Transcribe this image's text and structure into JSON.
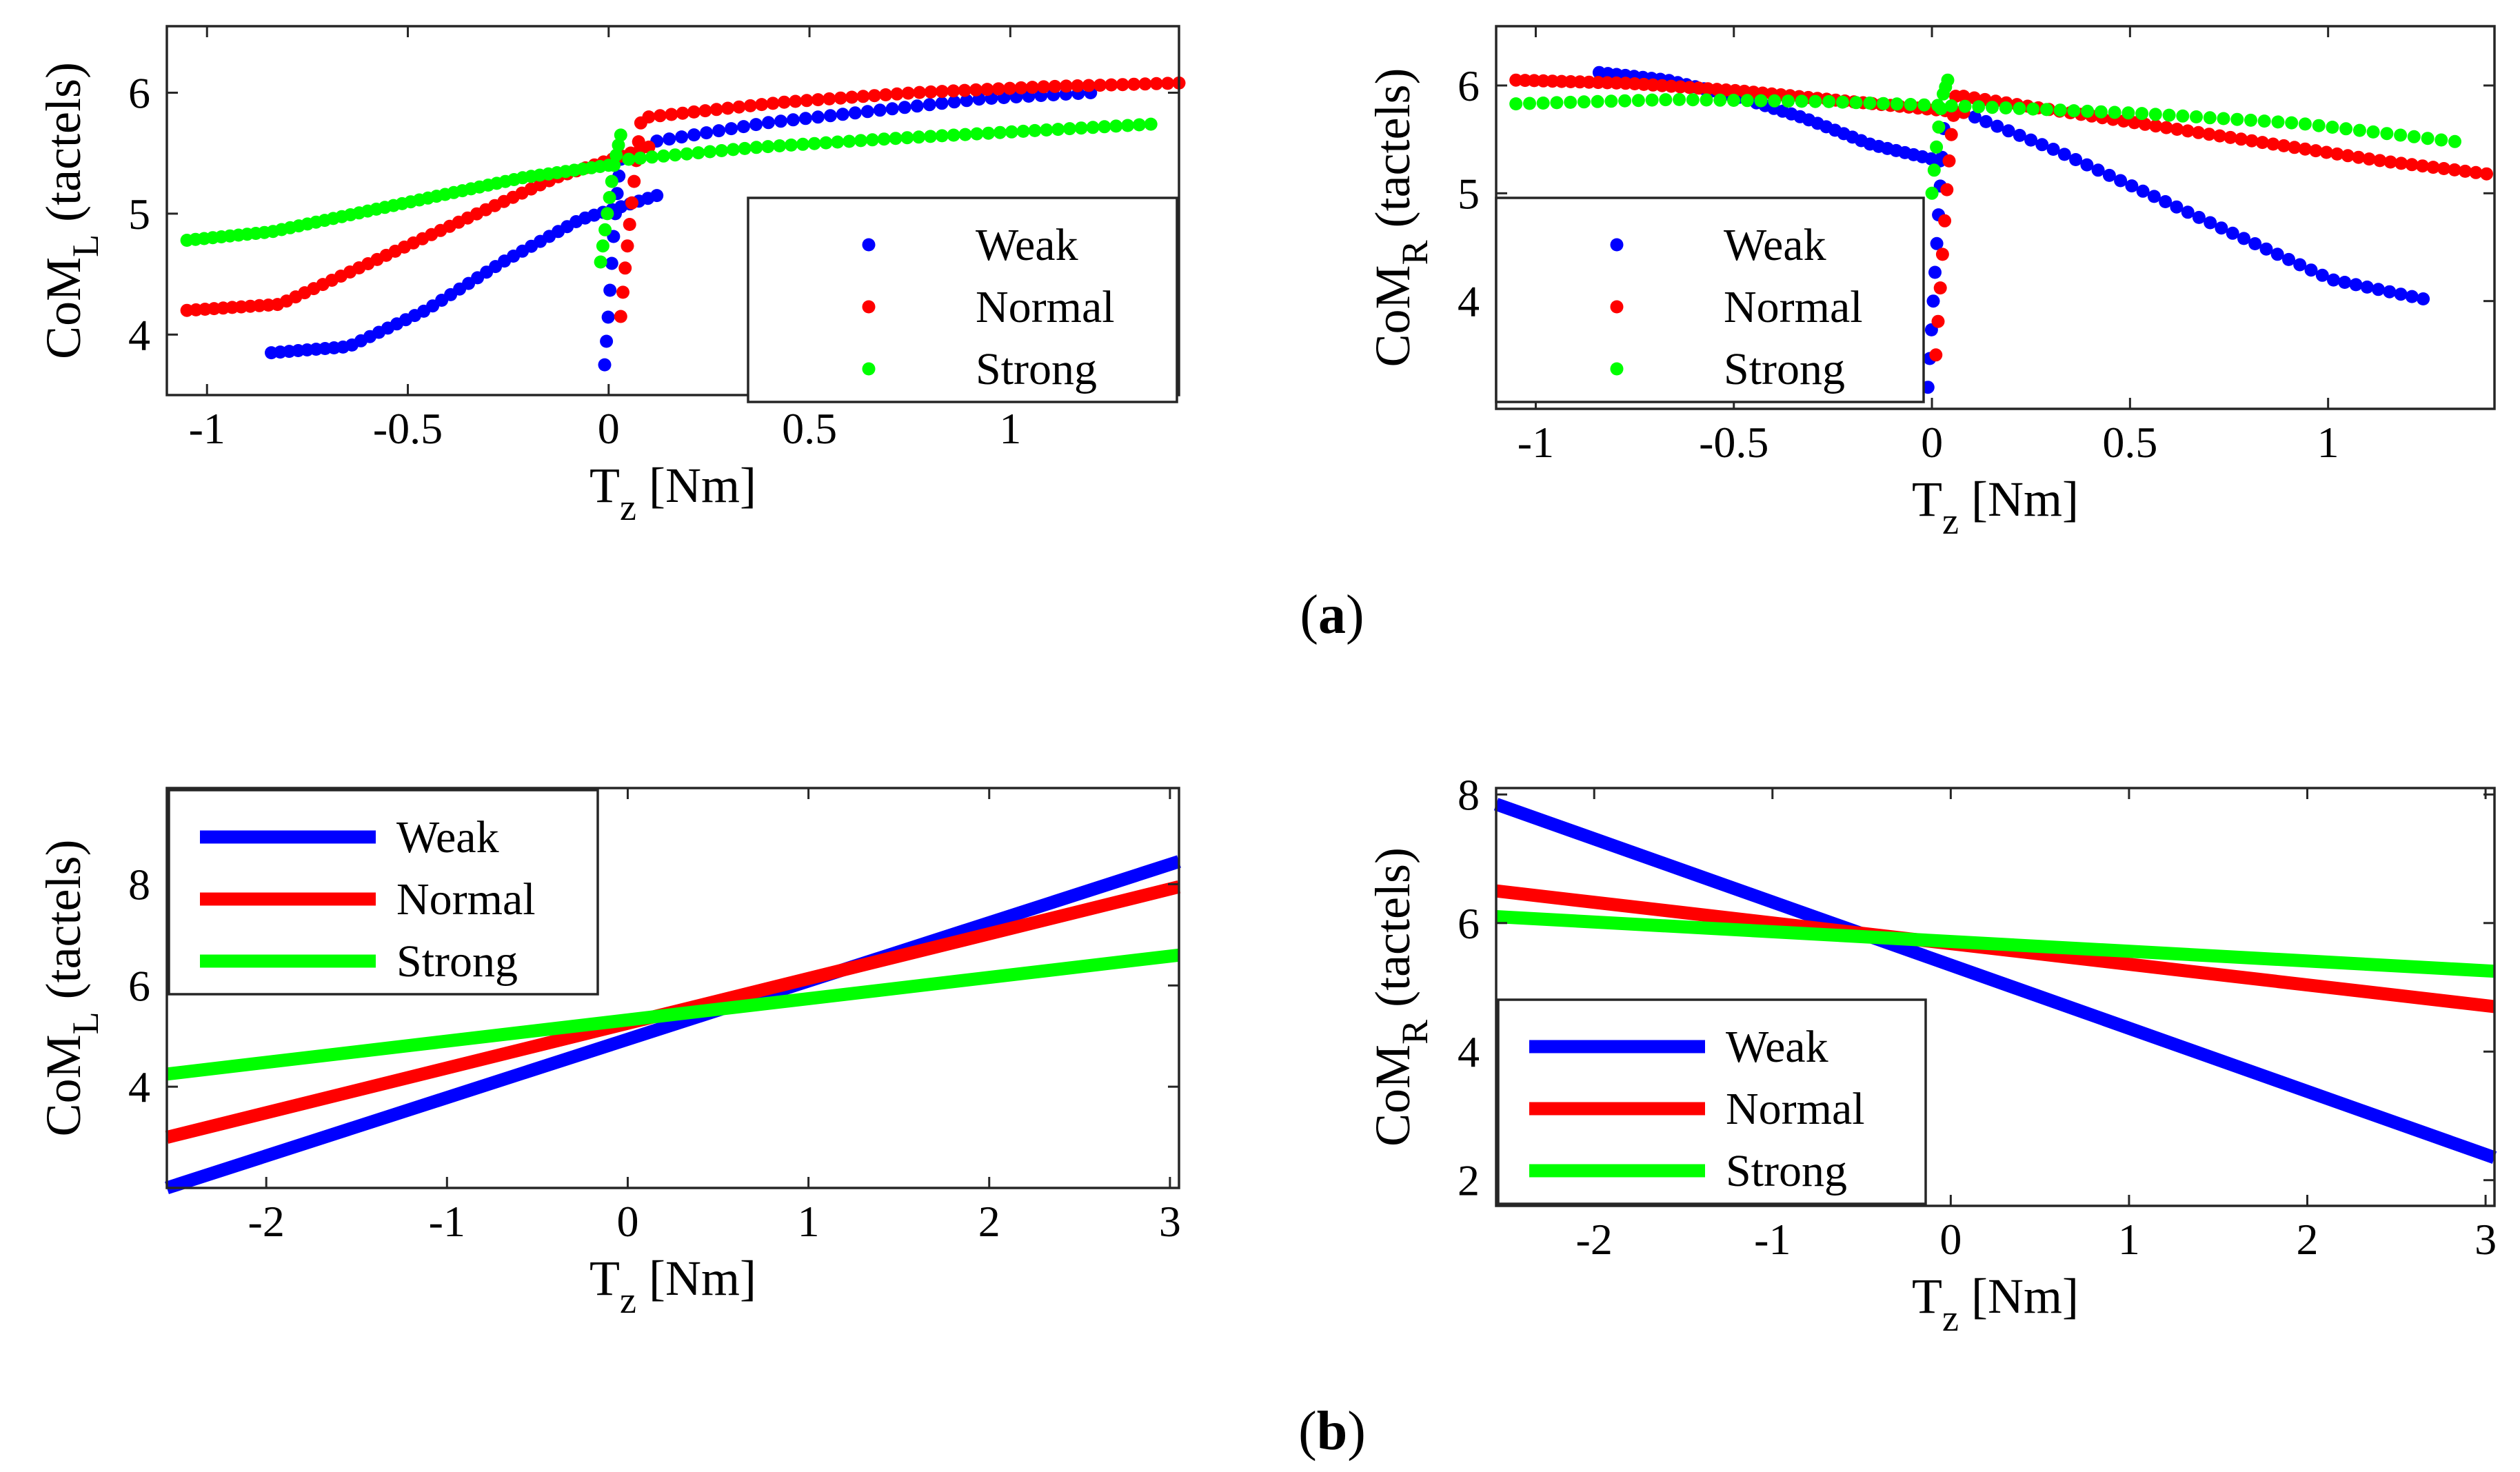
{
  "figure": {
    "panel_labels": {
      "a": {
        "open": "(",
        "letter": "a",
        "close": ")"
      },
      "b": {
        "open": "(",
        "letter": "b",
        "close": ")"
      }
    },
    "colors": {
      "Weak": "#0000ff",
      "Normal": "#ff0000",
      "Strong": "#00ff00"
    }
  },
  "chart_data": [
    {
      "id": "a-left",
      "type": "scatter",
      "title": "",
      "xlabel": {
        "main": "T",
        "sub": "z",
        "rest": " [Nm]"
      },
      "ylabel": {
        "main": "CoM",
        "sub": "L",
        "rest": " (tactels)"
      },
      "xlim": [
        -1.1,
        1.42
      ],
      "ylim": [
        3.5,
        6.55
      ],
      "xticks": [
        -1,
        -0.5,
        0,
        0.5,
        1
      ],
      "xtick_labels": [
        "-1",
        "-0.5",
        "0",
        "0.5",
        "1"
      ],
      "yticks": [
        4,
        5,
        6
      ],
      "ytick_labels": [
        "4",
        "5",
        "6"
      ],
      "legend": {
        "position": "bottom-right",
        "entries": [
          "Weak",
          "Normal",
          "Strong"
        ]
      },
      "series": [
        {
          "name": "Weak",
          "branches": [
            {
              "x0": -0.84,
              "x1": 0.12,
              "y": [
                3.85,
                3.9,
                4.2,
                4.6,
                4.95,
                5.15
              ],
              "n": 44
            },
            {
              "x0": 0.12,
              "x1": 1.2,
              "y": [
                5.6,
                5.75,
                5.85,
                5.95,
                6.0
              ],
              "n": 36
            },
            {
              "x0": -0.01,
              "x1": 0.03,
              "y": [
                3.75,
                4.1,
                4.5,
                4.9,
                5.2,
                5.45
              ],
              "n": 10
            }
          ]
        },
        {
          "name": "Normal",
          "branches": [
            {
              "x0": -1.05,
              "x1": 0.1,
              "y": [
                4.2,
                4.25,
                4.6,
                4.95,
                5.3,
                5.55
              ],
              "n": 52
            },
            {
              "x0": 0.1,
              "x1": 1.42,
              "y": [
                5.8,
                5.92,
                6.0,
                6.05,
                6.08
              ],
              "n": 48
            },
            {
              "x0": 0.03,
              "x1": 0.08,
              "y": [
                4.15,
                4.6,
                5.0,
                5.4,
                5.75
              ],
              "n": 10
            }
          ]
        },
        {
          "name": "Strong",
          "branches": [
            {
              "x0": -1.05,
              "x1": 0.0,
              "y": [
                4.78,
                4.85,
                5.0,
                5.15,
                5.3,
                5.4
              ],
              "n": 50
            },
            {
              "x0": 0.05,
              "x1": 1.35,
              "y": [
                5.45,
                5.55,
                5.62,
                5.68,
                5.74
              ],
              "n": 46
            },
            {
              "x0": -0.02,
              "x1": 0.03,
              "y": [
                4.6,
                5.0,
                5.4,
                5.65
              ],
              "n": 10
            }
          ]
        }
      ]
    },
    {
      "id": "a-right",
      "type": "scatter",
      "title": "",
      "xlabel": {
        "main": "T",
        "sub": "z",
        "rest": " [Nm]"
      },
      "ylabel": {
        "main": "CoM",
        "sub": "R",
        "rest": " (tactels)"
      },
      "xlim": [
        -1.1,
        1.42
      ],
      "ylim": [
        3.0,
        6.55
      ],
      "xticks": [
        -1,
        -0.5,
        0,
        0.5,
        1
      ],
      "xtick_labels": [
        "-1",
        "-0.5",
        "0",
        "0.5",
        "1"
      ],
      "yticks": [
        4,
        5,
        6
      ],
      "ytick_labels": [
        "4",
        "5",
        "6"
      ],
      "legend": {
        "position": "bottom-left",
        "entries": [
          "Weak",
          "Normal",
          "Strong"
        ]
      },
      "series": [
        {
          "name": "Weak",
          "branches": [
            {
              "x0": -0.84,
              "x1": 0.02,
              "y": [
                6.12,
                6.05,
                5.9,
                5.7,
                5.45,
                5.3
              ],
              "n": 40
            },
            {
              "x0": 0.08,
              "x1": 1.24,
              "y": [
                5.75,
                5.4,
                5.0,
                4.6,
                4.2,
                4.02
              ],
              "n": 42
            },
            {
              "x0": -0.01,
              "x1": 0.03,
              "y": [
                3.2,
                3.8,
                4.4,
                5.0,
                5.6
              ],
              "n": 10
            }
          ]
        },
        {
          "name": "Normal",
          "branches": [
            {
              "x0": -1.05,
              "x1": 0.08,
              "y": [
                6.05,
                6.02,
                5.95,
                5.85,
                5.75
              ],
              "n": 50
            },
            {
              "x0": 0.08,
              "x1": 1.4,
              "y": [
                5.9,
                5.75,
                5.6,
                5.45,
                5.3,
                5.18
              ],
              "n": 50
            },
            {
              "x0": 0.01,
              "x1": 0.06,
              "y": [
                3.5,
                4.2,
                4.9,
                5.5,
                5.9
              ],
              "n": 10
            }
          ]
        },
        {
          "name": "Strong",
          "branches": [
            {
              "x0": -1.05,
              "x1": 1.32,
              "y": [
                5.83,
                5.87,
                5.85,
                5.8,
                5.74,
                5.65,
                5.48
              ],
              "n": 70
            },
            {
              "x0": 0.0,
              "x1": 0.04,
              "y": [
                5.0,
                5.5,
                5.9,
                6.05
              ],
              "n": 8
            }
          ]
        }
      ]
    },
    {
      "id": "b-left",
      "type": "line",
      "title": "",
      "xlabel": {
        "main": "T",
        "sub": "z",
        "rest": " [Nm]"
      },
      "ylabel": {
        "main": "CoM",
        "sub": "L",
        "rest": " (tactels)"
      },
      "xlim": [
        -2.55,
        3.05
      ],
      "ylim": [
        2.0,
        9.9
      ],
      "xticks": [
        -2,
        -1,
        0,
        1,
        2,
        3
      ],
      "xtick_labels": [
        "-2",
        "-1",
        "0",
        "1",
        "2",
        "3"
      ],
      "yticks": [
        4,
        6,
        8
      ],
      "ytick_labels": [
        "4",
        "6",
        "8"
      ],
      "legend": {
        "position": "top-left",
        "entries": [
          "Weak",
          "Normal",
          "Strong"
        ]
      },
      "series": [
        {
          "name": "Weak",
          "x": [
            -2.55,
            3.05
          ],
          "y": [
            2.0,
            8.45
          ]
        },
        {
          "name": "Normal",
          "x": [
            -2.55,
            3.05
          ],
          "y": [
            3.0,
            7.95
          ]
        },
        {
          "name": "Strong",
          "x": [
            -2.55,
            3.05
          ],
          "y": [
            4.25,
            6.6
          ]
        }
      ]
    },
    {
      "id": "b-right",
      "type": "line",
      "title": "",
      "xlabel": {
        "main": "T",
        "sub": "z",
        "rest": " [Nm]"
      },
      "ylabel": {
        "main": "CoM",
        "sub": "R",
        "rest": " (tactels)"
      },
      "xlim": [
        -2.55,
        3.05
      ],
      "ylim": [
        1.6,
        8.1
      ],
      "xticks": [
        -2,
        -1,
        0,
        1,
        2,
        3
      ],
      "xtick_labels": [
        "-2",
        "-1",
        "0",
        "1",
        "2",
        "3"
      ],
      "yticks": [
        2,
        4,
        6,
        8
      ],
      "ytick_labels": [
        "2",
        "4",
        "6",
        "8"
      ],
      "legend": {
        "position": "bottom-left",
        "entries": [
          "Weak",
          "Normal",
          "Strong"
        ]
      },
      "series": [
        {
          "name": "Weak",
          "x": [
            -2.55,
            3.05
          ],
          "y": [
            7.85,
            2.35
          ]
        },
        {
          "name": "Normal",
          "x": [
            -2.55,
            3.05
          ],
          "y": [
            6.5,
            4.7
          ]
        },
        {
          "name": "Strong",
          "x": [
            -2.55,
            3.05
          ],
          "y": [
            6.1,
            5.25
          ]
        }
      ]
    }
  ]
}
